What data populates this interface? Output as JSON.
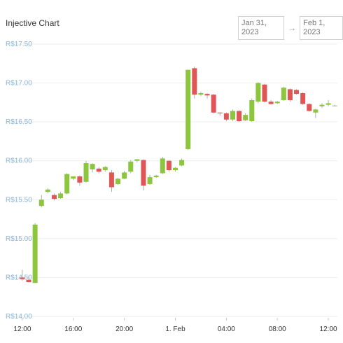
{
  "header": {
    "title": "Injective Chart",
    "date_from": "Jan 31, 2023",
    "arrow": "→",
    "date_to": "Feb 1, 2023"
  },
  "colors": {
    "up": "#8cc63f",
    "down": "#e05555",
    "axis_label": "#8ab6d6",
    "x_label": "#333333",
    "grid": "#eeeeee"
  },
  "chart_data": {
    "type": "candlestick",
    "title": "Injective Chart",
    "currency_prefix": "R$",
    "ylim": [
      14.0,
      17.5
    ],
    "y_ticks": [
      {
        "value": 17.5,
        "label": "R$17.50"
      },
      {
        "value": 17.0,
        "label": "R$17.00"
      },
      {
        "value": 16.5,
        "label": "R$16.50"
      },
      {
        "value": 16.0,
        "label": "R$16.00"
      },
      {
        "value": 15.5,
        "label": "R$15.50"
      },
      {
        "value": 15.0,
        "label": "R$15.00"
      },
      {
        "value": 14.5,
        "label": "R$14.50"
      },
      {
        "value": 14.0,
        "label": "R$14.00"
      }
    ],
    "x_ticks": [
      {
        "hour": 0,
        "label": "12:00"
      },
      {
        "hour": 4,
        "label": "16:00"
      },
      {
        "hour": 8,
        "label": "20:00"
      },
      {
        "hour": 12,
        "label": "1. Feb"
      },
      {
        "hour": 16,
        "label": "04:00"
      },
      {
        "hour": 20,
        "label": "08:00"
      },
      {
        "hour": 24,
        "label": "12:00"
      }
    ],
    "x_range_hours": [
      -0.6,
      24.6
    ],
    "candles": [
      {
        "t": 0.0,
        "o": 14.5,
        "h": 14.6,
        "l": 14.46,
        "c": 14.48
      },
      {
        "t": 0.5,
        "o": 14.47,
        "h": 14.52,
        "l": 14.44,
        "c": 14.44
      },
      {
        "t": 1.0,
        "o": 14.43,
        "h": 15.2,
        "l": 14.43,
        "c": 15.18
      },
      {
        "t": 1.5,
        "o": 15.42,
        "h": 15.56,
        "l": 15.4,
        "c": 15.5
      },
      {
        "t": 2.0,
        "o": 15.6,
        "h": 15.65,
        "l": 15.58,
        "c": 15.63
      },
      {
        "t": 2.5,
        "o": 15.56,
        "h": 15.58,
        "l": 15.49,
        "c": 15.51
      },
      {
        "t": 3.0,
        "o": 15.52,
        "h": 15.6,
        "l": 15.51,
        "c": 15.58
      },
      {
        "t": 3.5,
        "o": 15.58,
        "h": 15.84,
        "l": 15.57,
        "c": 15.83
      },
      {
        "t": 4.0,
        "o": 15.77,
        "h": 15.8,
        "l": 15.75,
        "c": 15.8
      },
      {
        "t": 4.5,
        "o": 15.8,
        "h": 15.81,
        "l": 15.68,
        "c": 15.72
      },
      {
        "t": 5.0,
        "o": 15.73,
        "h": 16.0,
        "l": 15.72,
        "c": 15.97
      },
      {
        "t": 5.5,
        "o": 15.89,
        "h": 15.97,
        "l": 15.85,
        "c": 15.96
      },
      {
        "t": 6.0,
        "o": 15.9,
        "h": 15.92,
        "l": 15.84,
        "c": 15.86
      },
      {
        "t": 6.5,
        "o": 15.88,
        "h": 15.93,
        "l": 15.86,
        "c": 15.92
      },
      {
        "t": 7.0,
        "o": 15.85,
        "h": 15.88,
        "l": 15.6,
        "c": 15.66
      },
      {
        "t": 7.5,
        "o": 15.7,
        "h": 15.78,
        "l": 15.69,
        "c": 15.77
      },
      {
        "t": 8.0,
        "o": 15.77,
        "h": 15.87,
        "l": 15.76,
        "c": 15.85
      },
      {
        "t": 8.5,
        "o": 15.86,
        "h": 16.01,
        "l": 15.84,
        "c": 15.99
      },
      {
        "t": 9.0,
        "o": 16.0,
        "h": 16.02,
        "l": 15.98,
        "c": 16.02
      },
      {
        "t": 9.5,
        "o": 16.01,
        "h": 16.02,
        "l": 15.62,
        "c": 15.68
      },
      {
        "t": 10.0,
        "o": 15.7,
        "h": 15.82,
        "l": 15.69,
        "c": 15.79
      },
      {
        "t": 10.5,
        "o": 15.79,
        "h": 15.82,
        "l": 15.78,
        "c": 15.81
      },
      {
        "t": 11.0,
        "o": 15.84,
        "h": 16.05,
        "l": 15.83,
        "c": 16.03
      },
      {
        "t": 11.5,
        "o": 16.0,
        "h": 16.01,
        "l": 15.86,
        "c": 15.88
      },
      {
        "t": 12.0,
        "o": 15.88,
        "h": 15.92,
        "l": 15.86,
        "c": 15.91
      },
      {
        "t": 12.5,
        "o": 15.94,
        "h": 16.03,
        "l": 15.93,
        "c": 16.01
      },
      {
        "t": 13.0,
        "o": 16.15,
        "h": 17.17,
        "l": 16.14,
        "c": 17.17
      },
      {
        "t": 13.5,
        "o": 17.19,
        "h": 17.21,
        "l": 16.8,
        "c": 16.85
      },
      {
        "t": 14.0,
        "o": 16.85,
        "h": 16.89,
        "l": 16.83,
        "c": 16.87
      },
      {
        "t": 14.5,
        "o": 16.86,
        "h": 16.87,
        "l": 16.8,
        "c": 16.84
      },
      {
        "t": 15.0,
        "o": 16.85,
        "h": 16.86,
        "l": 16.61,
        "c": 16.62
      },
      {
        "t": 15.5,
        "o": 16.62,
        "h": 16.62,
        "l": 16.58,
        "c": 16.61
      },
      {
        "t": 16.0,
        "o": 16.61,
        "h": 16.62,
        "l": 16.51,
        "c": 16.53
      },
      {
        "t": 16.5,
        "o": 16.53,
        "h": 16.66,
        "l": 16.51,
        "c": 16.64
      },
      {
        "t": 17.0,
        "o": 16.64,
        "h": 16.65,
        "l": 16.5,
        "c": 16.51
      },
      {
        "t": 17.5,
        "o": 16.52,
        "h": 16.61,
        "l": 16.51,
        "c": 16.59
      },
      {
        "t": 18.0,
        "o": 16.51,
        "h": 16.8,
        "l": 16.5,
        "c": 16.78
      },
      {
        "t": 18.5,
        "o": 16.76,
        "h": 17.01,
        "l": 16.74,
        "c": 17.0
      },
      {
        "t": 19.0,
        "o": 16.98,
        "h": 16.99,
        "l": 16.75,
        "c": 16.76
      },
      {
        "t": 19.5,
        "o": 16.76,
        "h": 16.78,
        "l": 16.72,
        "c": 16.73
      },
      {
        "t": 20.0,
        "o": 16.74,
        "h": 16.77,
        "l": 16.73,
        "c": 16.76
      },
      {
        "t": 20.5,
        "o": 16.78,
        "h": 16.95,
        "l": 16.77,
        "c": 16.94
      },
      {
        "t": 21.0,
        "o": 16.92,
        "h": 16.93,
        "l": 16.76,
        "c": 16.78
      },
      {
        "t": 21.5,
        "o": 16.91,
        "h": 16.92,
        "l": 16.85,
        "c": 16.86
      },
      {
        "t": 22.0,
        "o": 16.87,
        "h": 16.88,
        "l": 16.72,
        "c": 16.73
      },
      {
        "t": 22.5,
        "o": 16.73,
        "h": 16.74,
        "l": 16.63,
        "c": 16.64
      },
      {
        "t": 23.0,
        "o": 16.62,
        "h": 16.67,
        "l": 16.55,
        "c": 16.66
      },
      {
        "t": 23.5,
        "o": 16.7,
        "h": 16.74,
        "l": 16.68,
        "c": 16.72
      },
      {
        "t": 24.0,
        "o": 16.72,
        "h": 16.78,
        "l": 16.7,
        "c": 16.74
      },
      {
        "t": 24.5,
        "o": 16.71,
        "h": 16.72,
        "l": 16.7,
        "c": 16.71
      }
    ]
  }
}
